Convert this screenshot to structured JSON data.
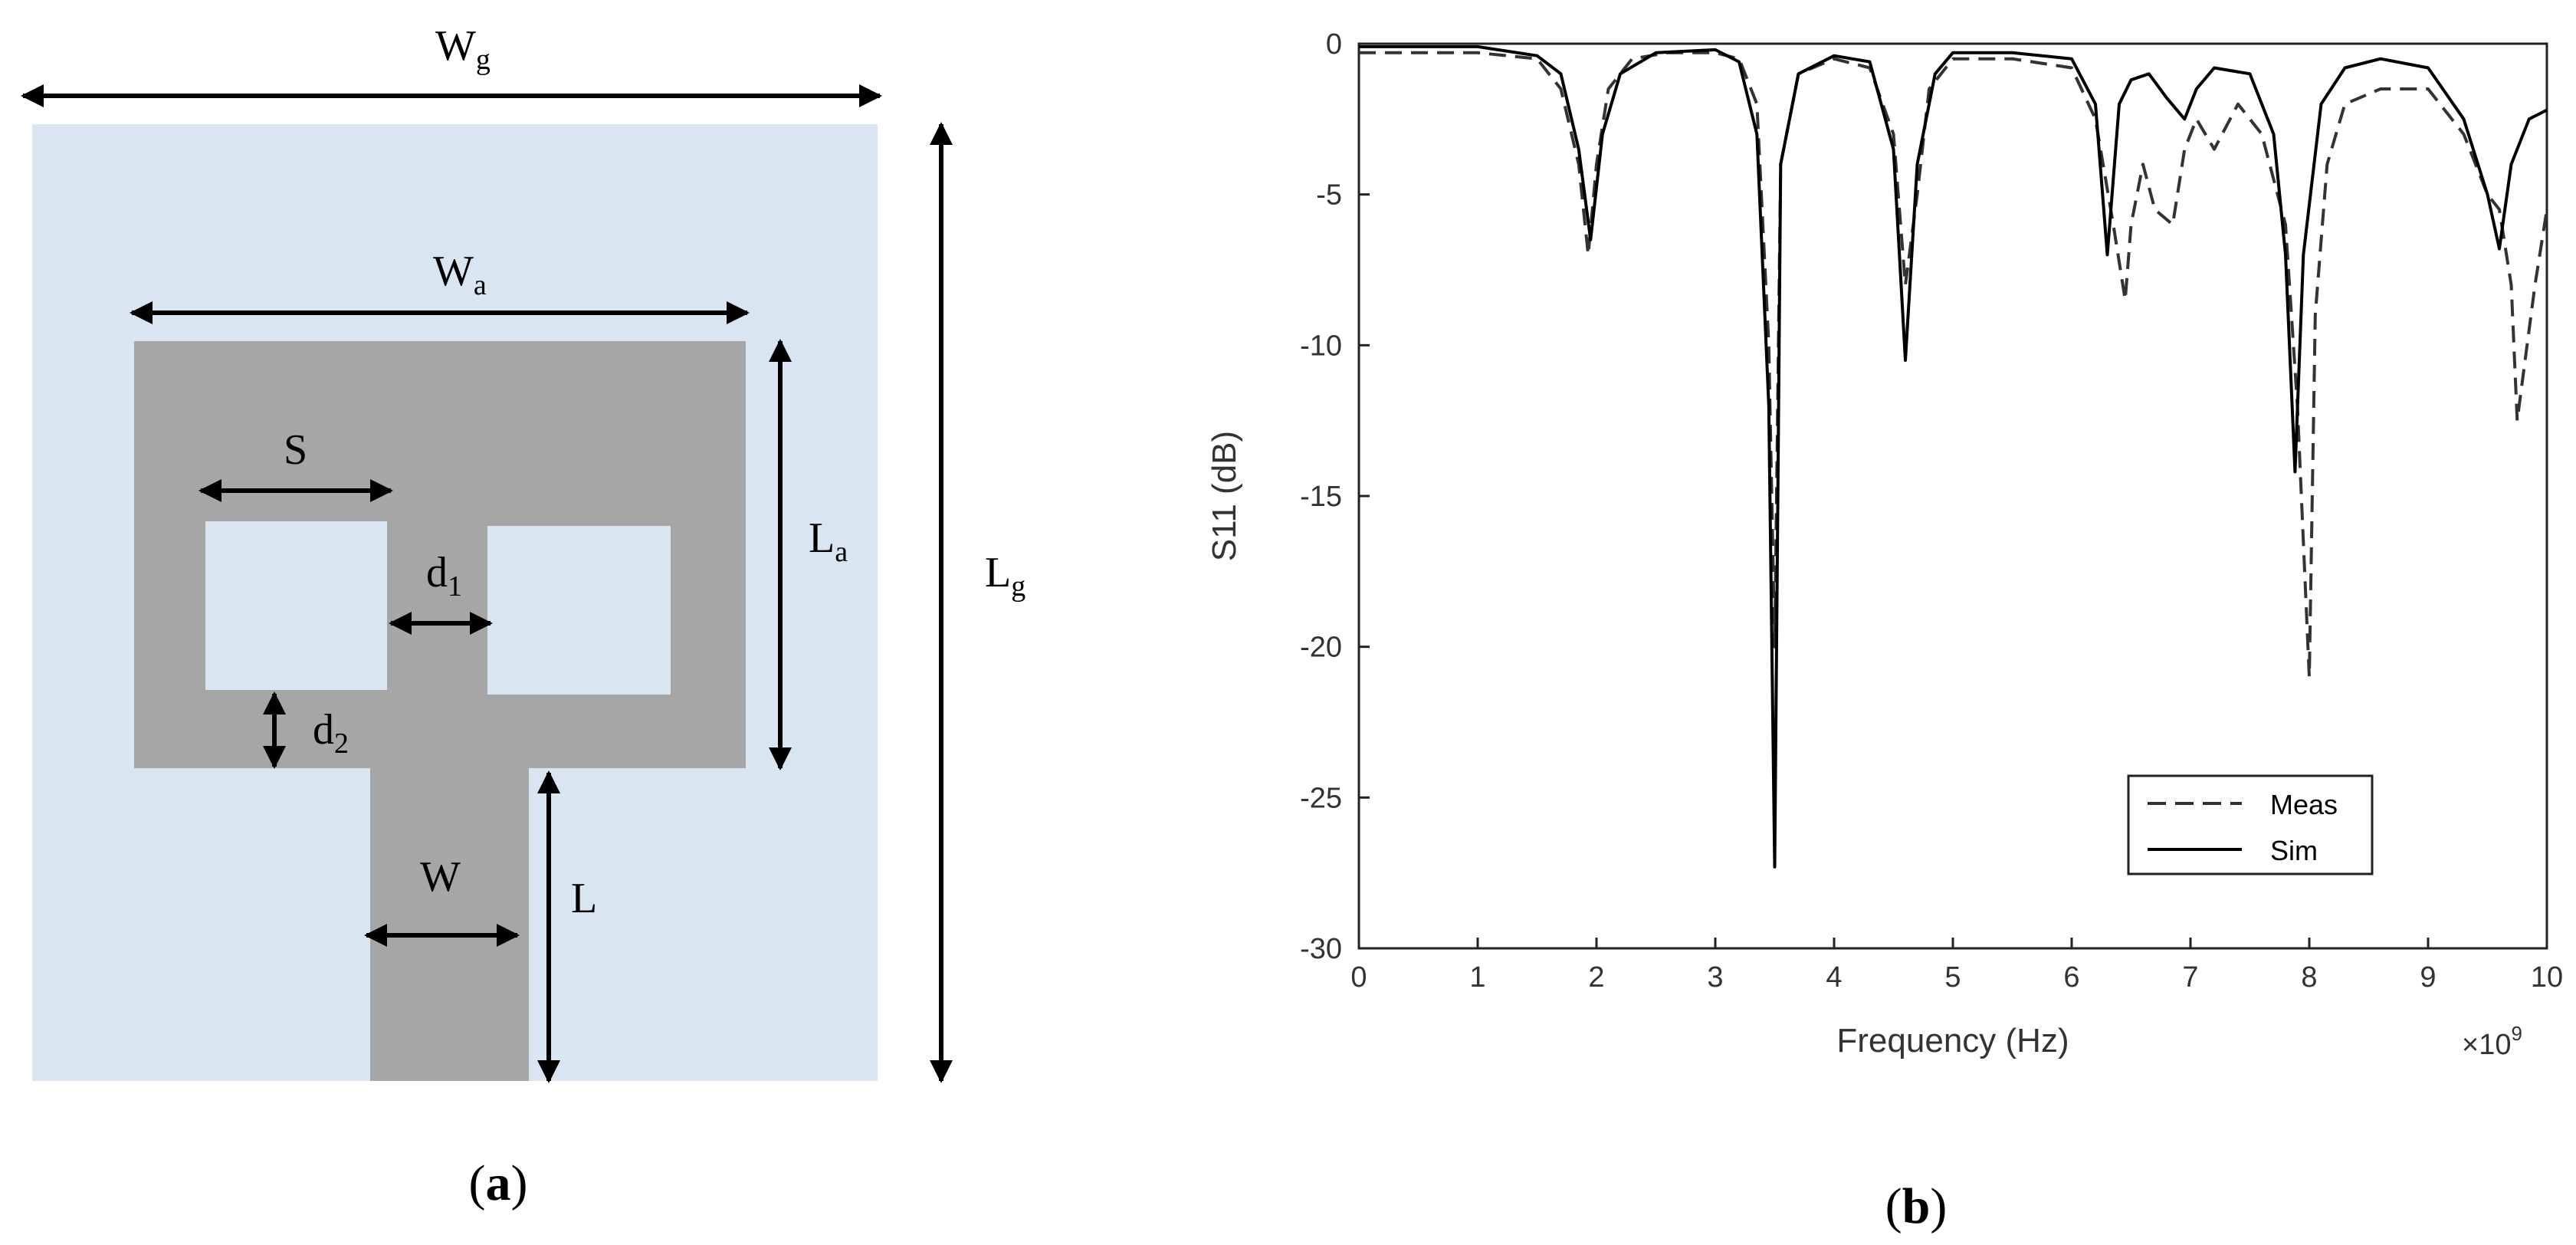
{
  "panel_a": {
    "caption_open": "(",
    "caption_letter": "a",
    "caption_close": ")",
    "labels": {
      "wg_main": "W",
      "wg_sub": "g",
      "lg_main": "L",
      "lg_sub": "g",
      "wa_main": "W",
      "wa_sub": "a",
      "la_main": "L",
      "la_sub": "a",
      "s": "S",
      "d1_main": "d",
      "d1_sub": "1",
      "d2_main": "d",
      "d2_sub": "2",
      "w": "W",
      "l": "L"
    },
    "colors": {
      "substrate": "#d9e5f1",
      "patch": "#a6a6a6",
      "arrow": "#000000"
    }
  },
  "panel_b": {
    "caption_open": "(",
    "caption_letter": "b",
    "caption_close": ")",
    "exponent_label": "×10",
    "exponent_power": "9"
  },
  "chart_data": {
    "type": "line",
    "title": "",
    "xlabel": "Frequency (Hz)",
    "ylabel": "S11 (dB)",
    "xlim": [
      0,
      10
    ],
    "ylim": [
      -30,
      0
    ],
    "x_scale_note": "×10^9",
    "xticks": [
      0,
      1,
      2,
      3,
      4,
      5,
      6,
      7,
      8,
      9,
      10
    ],
    "yticks": [
      0,
      -5,
      -10,
      -15,
      -20,
      -25,
      -30
    ],
    "grid": false,
    "legend_position": "bottom-right",
    "series": [
      {
        "name": "Meas",
        "style": "dashed",
        "color": "#333333",
        "x": [
          0,
          0.5,
          1.0,
          1.5,
          1.7,
          1.85,
          1.93,
          2.0,
          2.1,
          2.3,
          2.6,
          3.0,
          3.2,
          3.35,
          3.45,
          3.5,
          3.55,
          3.7,
          4.0,
          4.3,
          4.5,
          4.6,
          4.7,
          4.8,
          5.0,
          5.5,
          6.0,
          6.2,
          6.35,
          6.45,
          6.5,
          6.6,
          6.7,
          6.85,
          6.95,
          7.05,
          7.2,
          7.4,
          7.6,
          7.8,
          7.9,
          8.0,
          8.05,
          8.15,
          8.3,
          8.6,
          9.0,
          9.3,
          9.5,
          9.6,
          9.7,
          9.75,
          9.8,
          9.9,
          10.0
        ],
        "y": [
          -0.3,
          -0.3,
          -0.3,
          -0.5,
          -1.5,
          -4.0,
          -7.0,
          -4.0,
          -1.5,
          -0.5,
          -0.3,
          -0.3,
          -0.5,
          -2.0,
          -10.0,
          -20.0,
          -4.0,
          -1.0,
          -0.5,
          -0.8,
          -3.0,
          -8.0,
          -5.0,
          -1.5,
          -0.5,
          -0.5,
          -0.8,
          -2.5,
          -6.0,
          -8.5,
          -6.0,
          -4.0,
          -5.5,
          -6.0,
          -3.5,
          -2.5,
          -3.5,
          -2.0,
          -3.0,
          -6.0,
          -12.0,
          -21.0,
          -9.0,
          -4.0,
          -2.0,
          -1.5,
          -1.5,
          -3.0,
          -5.0,
          -5.5,
          -8.0,
          -12.5,
          -11.0,
          -8.0,
          -5.5
        ]
      },
      {
        "name": "Sim",
        "style": "solid",
        "color": "#000000",
        "x": [
          0,
          0.5,
          1.0,
          1.5,
          1.7,
          1.85,
          1.95,
          2.05,
          2.2,
          2.5,
          3.0,
          3.2,
          3.35,
          3.45,
          3.5,
          3.55,
          3.7,
          4.0,
          4.3,
          4.5,
          4.6,
          4.7,
          4.85,
          5.0,
          5.5,
          6.0,
          6.2,
          6.3,
          6.4,
          6.5,
          6.65,
          6.8,
          6.95,
          7.05,
          7.2,
          7.5,
          7.7,
          7.8,
          7.88,
          7.95,
          8.1,
          8.3,
          8.6,
          9.0,
          9.3,
          9.5,
          9.6,
          9.7,
          9.85,
          10.0
        ],
        "y": [
          -0.1,
          -0.1,
          -0.1,
          -0.4,
          -1.0,
          -3.5,
          -6.5,
          -3.0,
          -1.0,
          -0.3,
          -0.2,
          -0.6,
          -3.0,
          -12.0,
          -27.3,
          -4.0,
          -1.0,
          -0.4,
          -0.6,
          -3.5,
          -10.5,
          -4.0,
          -1.0,
          -0.3,
          -0.3,
          -0.5,
          -2.0,
          -7.0,
          -2.0,
          -1.2,
          -1.0,
          -1.8,
          -2.5,
          -1.5,
          -0.8,
          -1.0,
          -3.0,
          -7.0,
          -14.2,
          -7.0,
          -2.0,
          -0.8,
          -0.5,
          -0.8,
          -2.5,
          -5.0,
          -6.8,
          -4.0,
          -2.5,
          -2.2
        ]
      }
    ]
  }
}
